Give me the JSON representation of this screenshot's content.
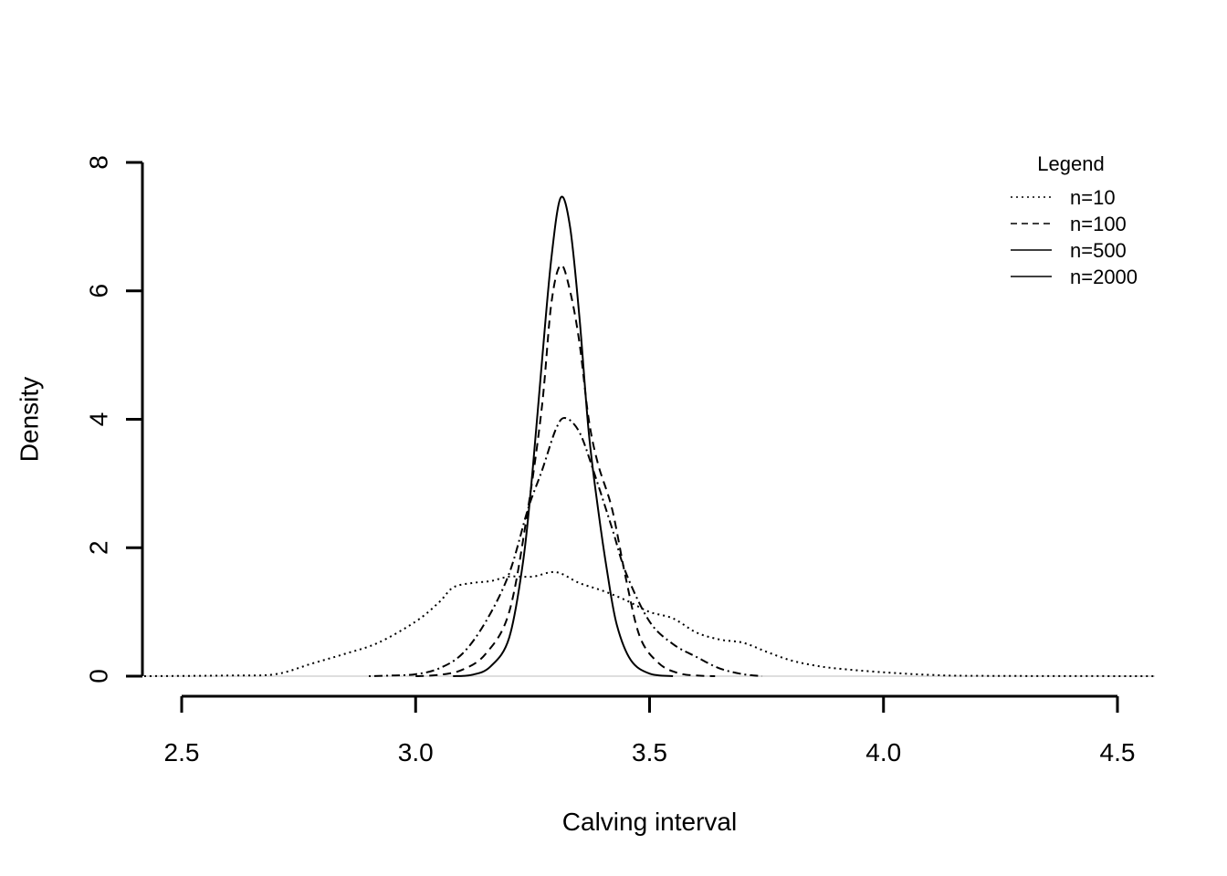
{
  "chart_data": {
    "type": "line",
    "title": "",
    "xlabel": "Calving interval",
    "ylabel": "Density",
    "xlim": [
      2.42,
      4.58
    ],
    "ylim": [
      0,
      8
    ],
    "x_ticks": [
      2.5,
      3.0,
      3.5,
      4.0,
      4.5
    ],
    "x_tick_labels": [
      "2.5",
      "3.0",
      "3.5",
      "4.0",
      "4.5"
    ],
    "y_ticks": [
      0,
      2,
      4,
      6,
      8
    ],
    "y_tick_labels": [
      "0",
      "2",
      "4",
      "6",
      "8"
    ],
    "legend": {
      "title": "Legend",
      "position": "top-right",
      "entries": [
        "n=10",
        "n=100",
        "n=500",
        "n=2000"
      ]
    },
    "series": [
      {
        "name": "n=10",
        "style": "dotted",
        "points": [
          [
            2.42,
            0
          ],
          [
            2.6,
            0.01
          ],
          [
            2.7,
            0.03
          ],
          [
            2.78,
            0.2
          ],
          [
            2.85,
            0.35
          ],
          [
            2.92,
            0.52
          ],
          [
            3.0,
            0.85
          ],
          [
            3.05,
            1.15
          ],
          [
            3.08,
            1.38
          ],
          [
            3.12,
            1.45
          ],
          [
            3.16,
            1.48
          ],
          [
            3.2,
            1.55
          ],
          [
            3.25,
            1.55
          ],
          [
            3.3,
            1.62
          ],
          [
            3.35,
            1.45
          ],
          [
            3.4,
            1.33
          ],
          [
            3.45,
            1.18
          ],
          [
            3.5,
            1.0
          ],
          [
            3.55,
            0.9
          ],
          [
            3.6,
            0.68
          ],
          [
            3.65,
            0.57
          ],
          [
            3.7,
            0.52
          ],
          [
            3.75,
            0.38
          ],
          [
            3.8,
            0.25
          ],
          [
            3.85,
            0.17
          ],
          [
            3.9,
            0.12
          ],
          [
            4.0,
            0.06
          ],
          [
            4.1,
            0.02
          ],
          [
            4.2,
            0.005
          ],
          [
            4.58,
            0
          ]
        ]
      },
      {
        "name": "n=100",
        "style": "dotdash",
        "points": [
          [
            2.9,
            0
          ],
          [
            2.95,
            0.01
          ],
          [
            3.0,
            0.03
          ],
          [
            3.05,
            0.12
          ],
          [
            3.1,
            0.35
          ],
          [
            3.15,
            0.85
          ],
          [
            3.2,
            1.6
          ],
          [
            3.24,
            2.6
          ],
          [
            3.27,
            3.2
          ],
          [
            3.3,
            3.85
          ],
          [
            3.32,
            4.02
          ],
          [
            3.35,
            3.8
          ],
          [
            3.38,
            3.2
          ],
          [
            3.42,
            2.3
          ],
          [
            3.45,
            1.6
          ],
          [
            3.5,
            0.85
          ],
          [
            3.55,
            0.5
          ],
          [
            3.6,
            0.3
          ],
          [
            3.65,
            0.12
          ],
          [
            3.7,
            0.03
          ],
          [
            3.74,
            0
          ]
        ]
      },
      {
        "name": "n=500",
        "style": "dashed",
        "points": [
          [
            3.0,
            0
          ],
          [
            3.05,
            0.02
          ],
          [
            3.1,
            0.1
          ],
          [
            3.15,
            0.35
          ],
          [
            3.2,
            1.0
          ],
          [
            3.24,
            2.6
          ],
          [
            3.27,
            4.2
          ],
          [
            3.29,
            5.8
          ],
          [
            3.31,
            6.4
          ],
          [
            3.33,
            6.0
          ],
          [
            3.35,
            5.2
          ],
          [
            3.37,
            4.0
          ],
          [
            3.39,
            3.3
          ],
          [
            3.42,
            2.6
          ],
          [
            3.45,
            1.5
          ],
          [
            3.48,
            0.6
          ],
          [
            3.52,
            0.2
          ],
          [
            3.56,
            0.05
          ],
          [
            3.6,
            0.01
          ],
          [
            3.64,
            0
          ]
        ]
      },
      {
        "name": "n=2000",
        "style": "solid",
        "points": [
          [
            3.08,
            0
          ],
          [
            3.12,
            0.02
          ],
          [
            3.16,
            0.15
          ],
          [
            3.2,
            0.6
          ],
          [
            3.23,
            1.8
          ],
          [
            3.25,
            3.2
          ],
          [
            3.27,
            4.9
          ],
          [
            3.29,
            6.5
          ],
          [
            3.31,
            7.45
          ],
          [
            3.33,
            7.0
          ],
          [
            3.35,
            5.6
          ],
          [
            3.37,
            3.8
          ],
          [
            3.39,
            2.6
          ],
          [
            3.41,
            1.6
          ],
          [
            3.43,
            0.8
          ],
          [
            3.46,
            0.25
          ],
          [
            3.5,
            0.04
          ],
          [
            3.55,
            0
          ]
        ]
      }
    ]
  }
}
